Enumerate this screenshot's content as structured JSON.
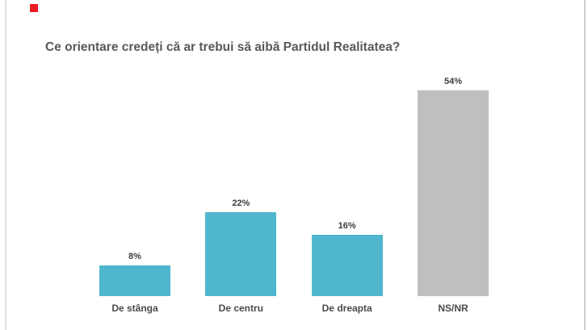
{
  "slide": {
    "title": "Ce orientare credeți că ar trebui să aibă Partidul Realitatea?",
    "marker_color": "#ec1c24",
    "background_color": "#ffffff"
  },
  "chart_data": {
    "type": "bar",
    "title": "Ce orientare credeți că ar trebui să aibă Partidul Realitatea?",
    "categories": [
      "De stânga",
      "De centru",
      "De dreapta",
      "NS/NR"
    ],
    "values": [
      8,
      22,
      16,
      54
    ],
    "value_labels": [
      "8%",
      "22%",
      "16%",
      "54%"
    ],
    "unit": "%",
    "bar_colors": [
      "#4fb6ce",
      "#4fb6ce",
      "#4fb6ce",
      "#bfbfbf"
    ],
    "accent_color": "#4fb6ce",
    "neutral_color": "#bfbfbf",
    "xlabel": "",
    "ylabel": "",
    "ylim": [
      0,
      58
    ],
    "grid": false,
    "axes_visible": false,
    "legend": "none",
    "value_label_position": "above-bar"
  }
}
